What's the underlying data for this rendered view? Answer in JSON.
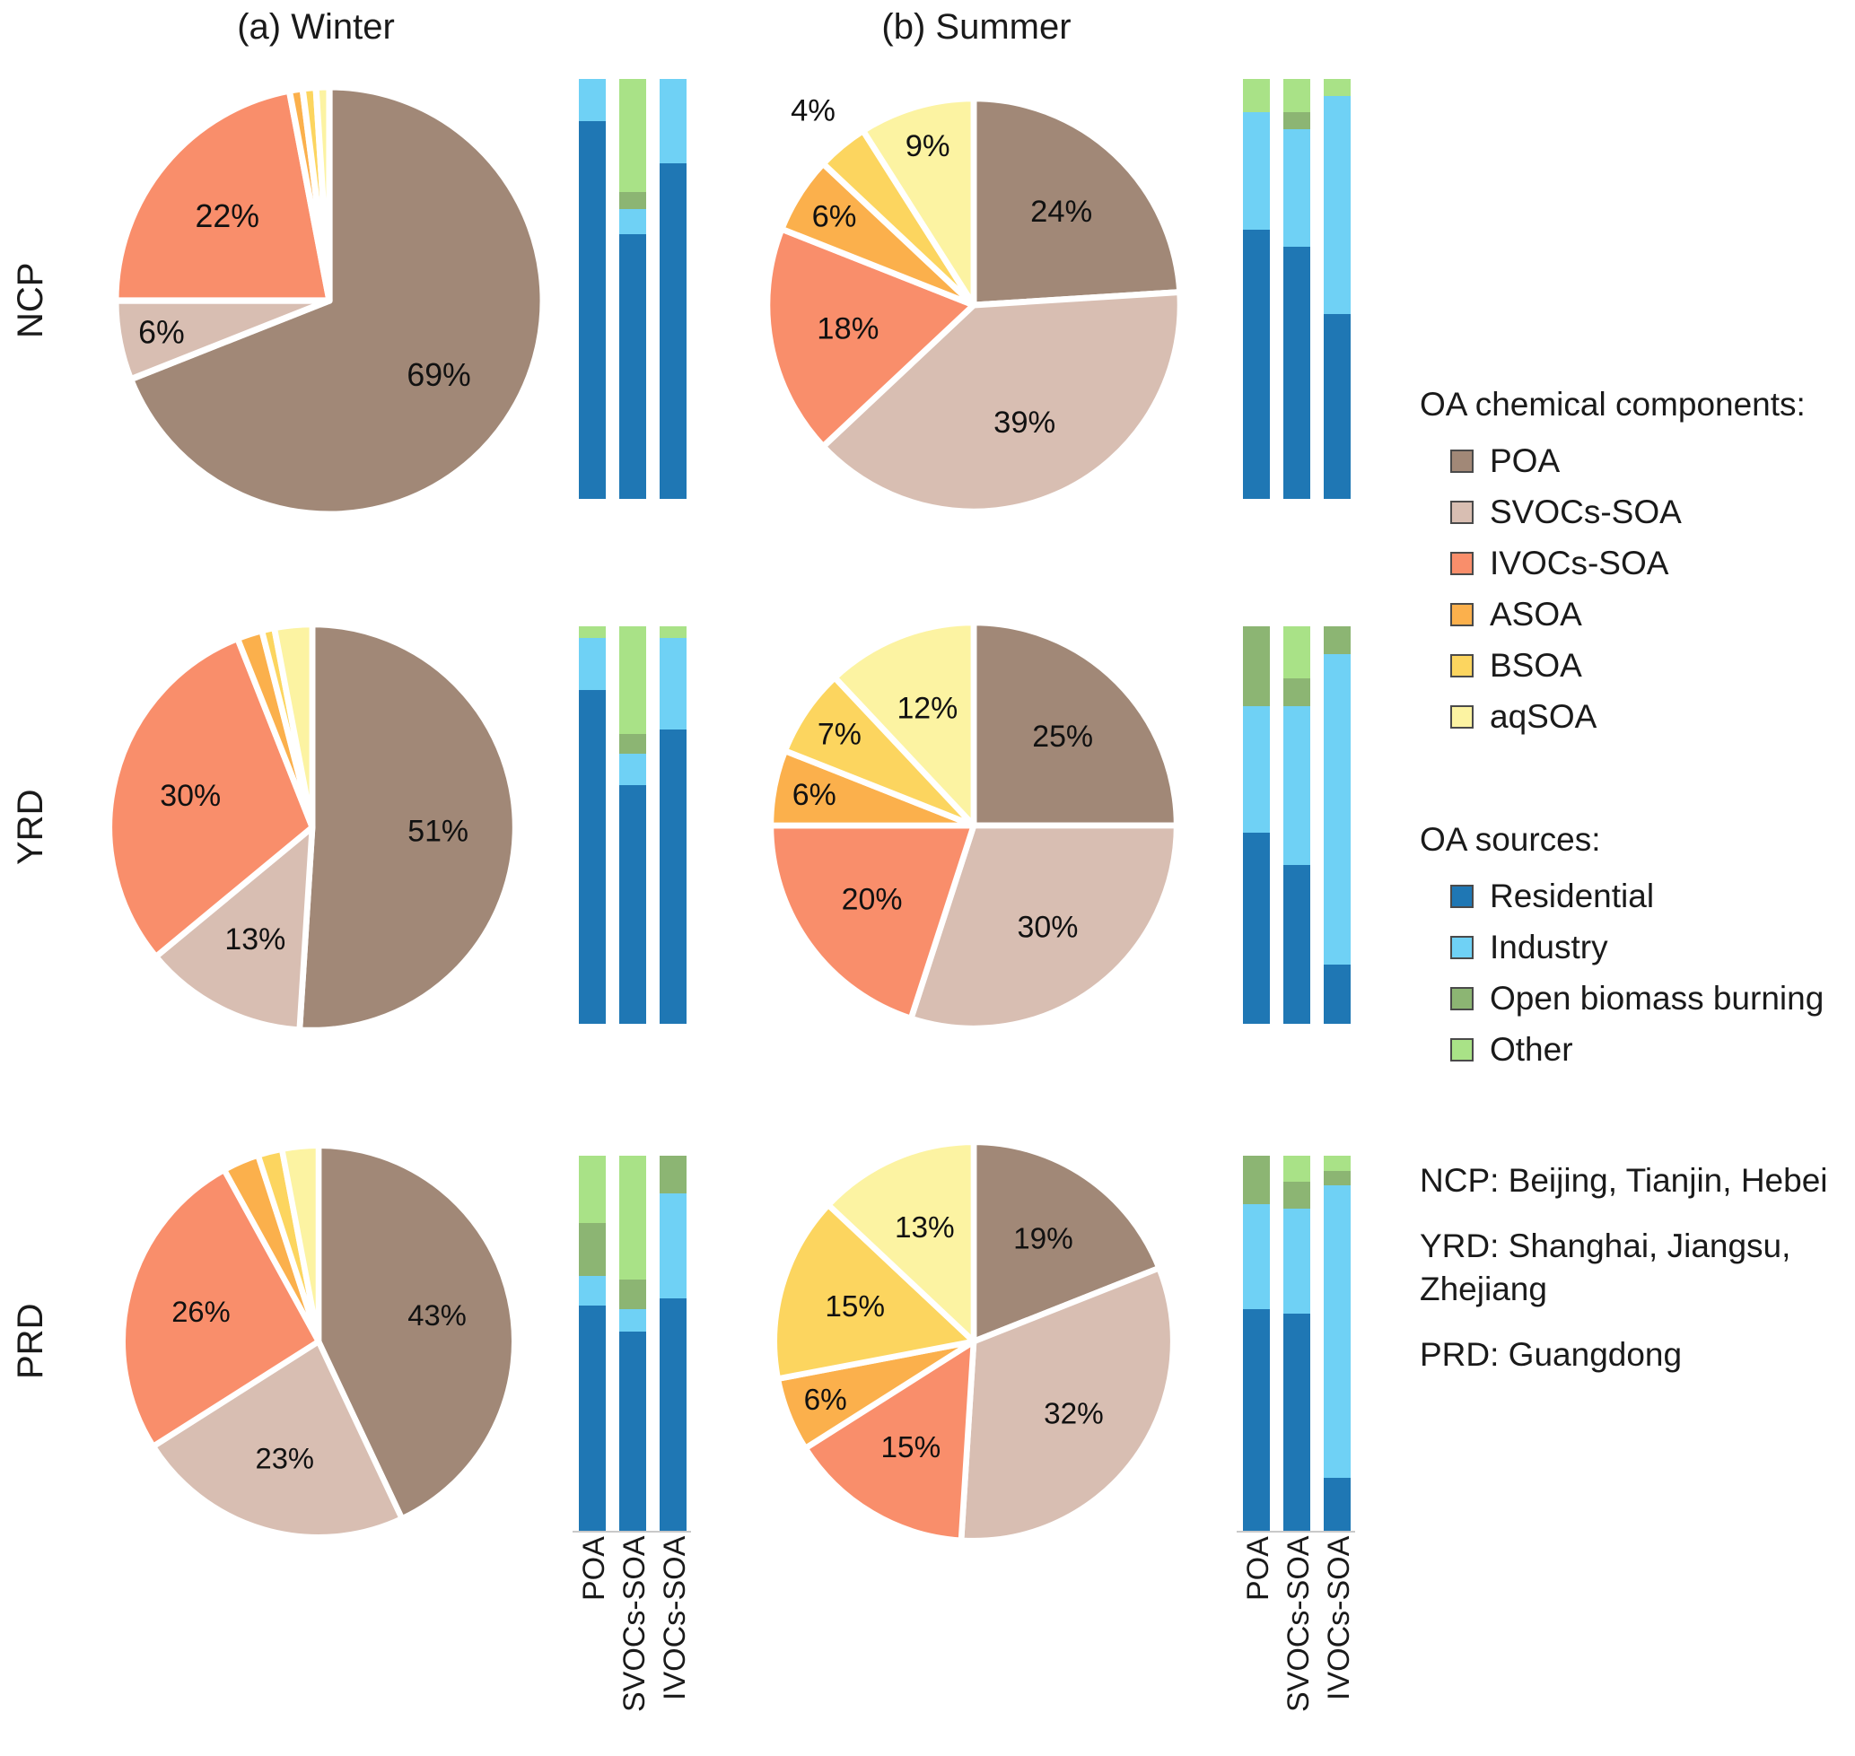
{
  "figure": {
    "panel_a_title": "(a) Winter",
    "panel_b_title": "(b) Summer",
    "row_labels": [
      "NCP",
      "YRD",
      "PRD"
    ],
    "bar_axis_categories": [
      "POA",
      "SVOCs-SOA",
      "IVOCs-SOA"
    ]
  },
  "legend": {
    "components_title": "OA chemical components:",
    "components": [
      {
        "label": "POA",
        "color": "#a18877"
      },
      {
        "label": "SVOCs-SOA",
        "color": "#d8beb2"
      },
      {
        "label": "IVOCs-SOA",
        "color": "#f98e6b"
      },
      {
        "label": "ASOA",
        "color": "#fbb04c"
      },
      {
        "label": "BSOA",
        "color": "#fcd55f"
      },
      {
        "label": "aqSOA",
        "color": "#fcf3a2"
      }
    ],
    "sources_title": "OA sources:",
    "sources": [
      {
        "label": "Residential",
        "color": "#1f77b4"
      },
      {
        "label": "Industry",
        "color": "#6fd1f5"
      },
      {
        "label": "Open biomass burning",
        "color": "#8cb573"
      },
      {
        "label": "Other",
        "color": "#a9e287"
      }
    ]
  },
  "notes": [
    "NCP: Beijing, Tianjin, Hebei",
    "YRD: Shanghai, Jiangsu, Zhejiang",
    "PRD: Guangdong"
  ],
  "chart_data": {
    "type": "pie",
    "unit": "%",
    "component_order": [
      "POA",
      "SVOCs-SOA",
      "IVOCs-SOA",
      "ASOA",
      "BSOA",
      "aqSOA"
    ],
    "source_order": [
      "Residential",
      "Industry",
      "Open biomass burning",
      "Other"
    ],
    "component_colors": {
      "POA": "#a18877",
      "SVOCs-SOA": "#d8beb2",
      "IVOCs-SOA": "#f98e6b",
      "ASOA": "#fbb04c",
      "BSOA": "#fcd55f",
      "aqSOA": "#fcf3a2"
    },
    "source_colors": {
      "Residential": "#1f77b4",
      "Industry": "#6fd1f5",
      "Open biomass burning": "#8cb573",
      "Other": "#a9e287"
    },
    "pies": [
      {
        "region": "NCP",
        "season": "Winter",
        "values": [
          69,
          6,
          22,
          1,
          1,
          1
        ],
        "labels": [
          "69%",
          "6%",
          "22%",
          "",
          "",
          ""
        ]
      },
      {
        "region": "NCP",
        "season": "Summer",
        "values": [
          24,
          39,
          18,
          6,
          4,
          9
        ],
        "labels": [
          "24%",
          "39%",
          "18%",
          "6%",
          "4%",
          "9%"
        ]
      },
      {
        "region": "YRD",
        "season": "Winter",
        "values": [
          51,
          13,
          30,
          2,
          1,
          3
        ],
        "labels": [
          "51%",
          "13%",
          "30%",
          "",
          "",
          ""
        ]
      },
      {
        "region": "YRD",
        "season": "Summer",
        "values": [
          25,
          30,
          20,
          6,
          7,
          12
        ],
        "labels": [
          "25%",
          "30%",
          "20%",
          "6%",
          "7%",
          "12%"
        ]
      },
      {
        "region": "PRD",
        "season": "Winter",
        "values": [
          43,
          23,
          26,
          3,
          2,
          3
        ],
        "labels": [
          "43%",
          "23%",
          "26%",
          "",
          "",
          ""
        ]
      },
      {
        "region": "PRD",
        "season": "Summer",
        "values": [
          19,
          32,
          15,
          6,
          15,
          13
        ],
        "labels": [
          "19%",
          "32%",
          "15%",
          "6%",
          "15%",
          "13%"
        ]
      }
    ],
    "bars": [
      {
        "region": "NCP",
        "season": "Winter",
        "categories": [
          "POA",
          "SVOCs-SOA",
          "IVOCs-SOA"
        ],
        "stacks": [
          [
            90,
            10,
            0,
            0
          ],
          [
            63,
            6,
            4,
            27
          ],
          [
            80,
            20,
            0,
            0
          ]
        ]
      },
      {
        "region": "NCP",
        "season": "Summer",
        "categories": [
          "POA",
          "SVOCs-SOA",
          "IVOCs-SOA"
        ],
        "stacks": [
          [
            64,
            28,
            0,
            8
          ],
          [
            60,
            28,
            4,
            8
          ],
          [
            44,
            52,
            0,
            4
          ]
        ]
      },
      {
        "region": "YRD",
        "season": "Winter",
        "categories": [
          "POA",
          "SVOCs-SOA",
          "IVOCs-SOA"
        ],
        "stacks": [
          [
            84,
            13,
            0,
            3
          ],
          [
            60,
            8,
            5,
            27
          ],
          [
            74,
            23,
            0,
            3
          ]
        ]
      },
      {
        "region": "YRD",
        "season": "Summer",
        "categories": [
          "POA",
          "SVOCs-SOA",
          "IVOCs-SOA"
        ],
        "stacks": [
          [
            48,
            32,
            20,
            0
          ],
          [
            40,
            40,
            7,
            13
          ],
          [
            15,
            78,
            7,
            0
          ]
        ]
      },
      {
        "region": "PRD",
        "season": "Winter",
        "categories": [
          "POA",
          "SVOCs-SOA",
          "IVOCs-SOA"
        ],
        "stacks": [
          [
            60,
            8,
            14,
            18
          ],
          [
            53,
            6,
            8,
            33
          ],
          [
            62,
            28,
            10,
            0
          ]
        ]
      },
      {
        "region": "PRD",
        "season": "Summer",
        "categories": [
          "POA",
          "SVOCs-SOA",
          "IVOCs-SOA"
        ],
        "stacks": [
          [
            59,
            28,
            13,
            0
          ],
          [
            58,
            28,
            7,
            7
          ],
          [
            14,
            78,
            4,
            4
          ]
        ]
      }
    ]
  }
}
